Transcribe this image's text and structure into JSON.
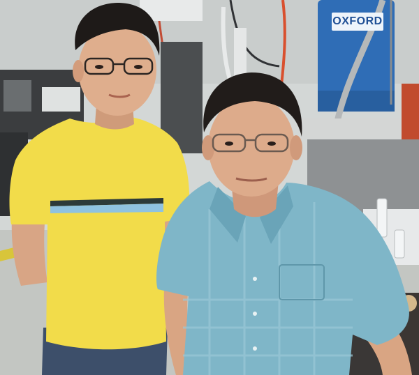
{
  "scene": {
    "labels": {
      "tank_brand": "OXFORD"
    },
    "colors": {
      "lab_wall": "#d8dcdb",
      "floor": "#c5c8c4",
      "tank_blue": "#2f6db6",
      "yellow_shirt": "#f2dc4a",
      "blue_shirt": "#7fb6c8",
      "jeans": "#3d4f6a",
      "hair": "#1e1a18",
      "skin": "#d9a583"
    }
  }
}
